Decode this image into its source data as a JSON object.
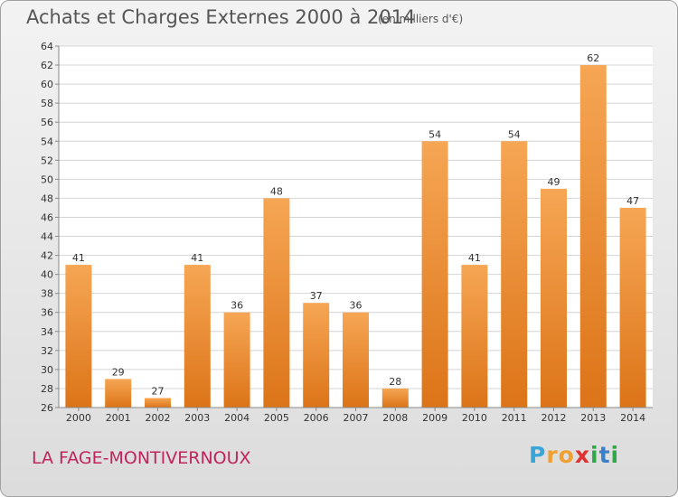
{
  "title": "Achats et Charges Externes 2000 à 2014",
  "unit": "(en milliers d'€)",
  "place": "LA FAGE-MONTIVERNOUX",
  "logo": {
    "letters": [
      "P",
      "r",
      "o",
      "x",
      "i",
      "t",
      "i"
    ],
    "colors": [
      "#3aa6d8",
      "#f0a030",
      "#f0a030",
      "#e03030",
      "#2fa84a",
      "#3a80c8",
      "#2fa84a"
    ]
  },
  "colors": {
    "bar_top": "#f6a654",
    "bar_bottom": "#dc7418",
    "grid": "#d4d4d4"
  },
  "chart_data": {
    "type": "bar",
    "title": "Achats et Charges Externes 2000 à 2014",
    "ylabel": "",
    "xlabel": "",
    "categories": [
      "2000",
      "2001",
      "2002",
      "2003",
      "2004",
      "2005",
      "2006",
      "2007",
      "2008",
      "2009",
      "2010",
      "2011",
      "2012",
      "2013",
      "2014"
    ],
    "values": [
      41,
      29,
      27,
      41,
      36,
      48,
      37,
      36,
      28,
      54,
      41,
      54,
      49,
      62,
      47
    ],
    "ylim": [
      26,
      64
    ],
    "yticks": [
      26,
      28,
      30,
      32,
      34,
      36,
      38,
      40,
      42,
      44,
      46,
      48,
      50,
      52,
      54,
      56,
      58,
      60,
      62,
      64
    ],
    "grid": true,
    "legend": "none"
  }
}
